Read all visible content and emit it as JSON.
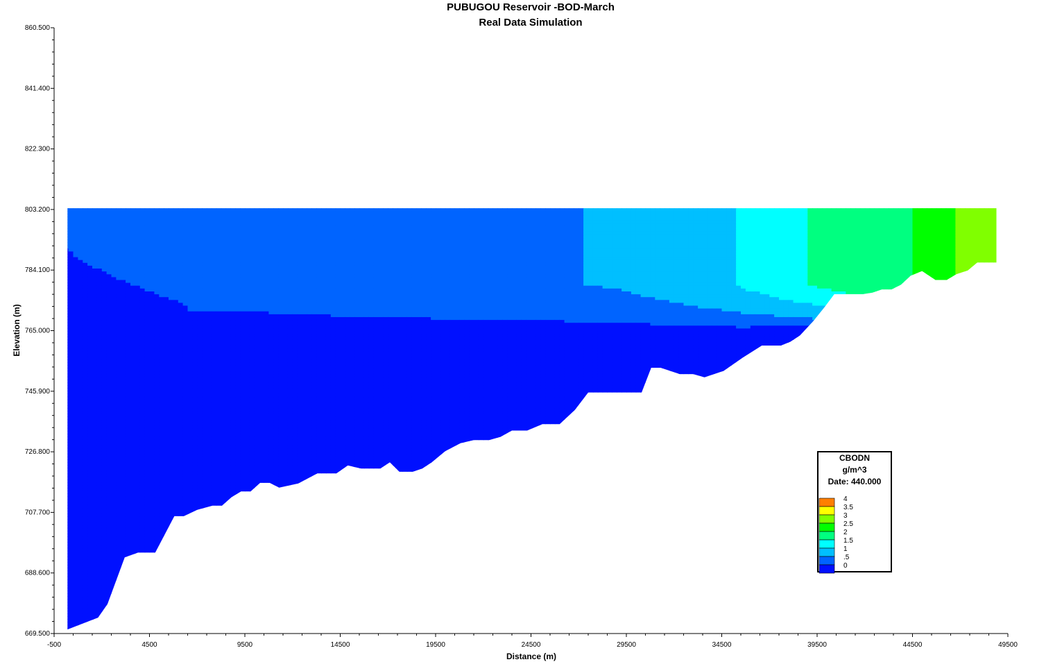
{
  "chart_data": {
    "type": "contour",
    "title": "PUBUGOU Reservoir -BOD-March",
    "subtitle": "Real Data Simulation",
    "xlabel": "Distance (m)",
    "ylabel": "Elevation (m)",
    "xlim": [
      -500,
      49500
    ],
    "ylim": [
      669.5,
      860.5
    ],
    "x_ticks": [
      "-500",
      "4500",
      "9500",
      "14500",
      "19500",
      "24500",
      "29500",
      "34500",
      "39500",
      "44500",
      "49500"
    ],
    "y_ticks": [
      "860.500",
      "841.400",
      "822.300",
      "803.200",
      "784.100",
      "765.000",
      "745.900",
      "726.800",
      "707.700",
      "688.600",
      "669.500"
    ],
    "water_surface_elevation": 803.6,
    "bottom_profile": [
      [
        200,
        670.8
      ],
      [
        1800,
        674.5
      ],
      [
        2300,
        678.8
      ],
      [
        3200,
        693.5
      ],
      [
        3900,
        695.0
      ],
      [
        4800,
        695.0
      ],
      [
        5800,
        706.5
      ],
      [
        6300,
        706.5
      ],
      [
        7000,
        708.5
      ],
      [
        7800,
        709.8
      ],
      [
        8300,
        709.8
      ],
      [
        8800,
        712.5
      ],
      [
        9300,
        714.3
      ],
      [
        9800,
        714.3
      ],
      [
        10300,
        717.0
      ],
      [
        10800,
        717.0
      ],
      [
        11300,
        715.5
      ],
      [
        12300,
        716.8
      ],
      [
        13300,
        720.0
      ],
      [
        14300,
        720.0
      ],
      [
        14900,
        722.5
      ],
      [
        15600,
        721.5
      ],
      [
        16600,
        721.5
      ],
      [
        17100,
        723.5
      ],
      [
        17600,
        720.5
      ],
      [
        18300,
        720.5
      ],
      [
        18800,
        721.5
      ],
      [
        19300,
        723.5
      ],
      [
        20000,
        727.0
      ],
      [
        20800,
        729.5
      ],
      [
        21500,
        730.5
      ],
      [
        22300,
        730.5
      ],
      [
        22900,
        731.5
      ],
      [
        23500,
        733.5
      ],
      [
        24300,
        733.5
      ],
      [
        25100,
        735.5
      ],
      [
        26000,
        735.5
      ],
      [
        26800,
        740.0
      ],
      [
        27500,
        745.5
      ],
      [
        30300,
        745.5
      ],
      [
        30800,
        753.3
      ],
      [
        31300,
        753.3
      ],
      [
        32300,
        751.3
      ],
      [
        33000,
        751.3
      ],
      [
        33600,
        750.3
      ],
      [
        34600,
        752.3
      ],
      [
        35600,
        756.5
      ],
      [
        36600,
        760.3
      ],
      [
        37600,
        760.3
      ],
      [
        38100,
        761.5
      ],
      [
        38600,
        763.5
      ],
      [
        39300,
        768.0
      ],
      [
        39900,
        772.5
      ],
      [
        40400,
        776.5
      ],
      [
        41900,
        776.5
      ],
      [
        42400,
        777.0
      ],
      [
        42900,
        778.0
      ],
      [
        43400,
        778.0
      ],
      [
        43900,
        779.5
      ],
      [
        44400,
        782.3
      ],
      [
        45000,
        783.8
      ],
      [
        45700,
        781.0
      ],
      [
        46300,
        781.0
      ],
      [
        46800,
        782.8
      ],
      [
        47400,
        784.0
      ],
      [
        47900,
        786.5
      ],
      [
        48900,
        786.5
      ],
      [
        48900,
        803.6
      ]
    ],
    "contour_levels": [
      "4",
      "3.5",
      "3",
      "2.5",
      "2",
      "1.5",
      "1",
      ".5",
      "0"
    ],
    "contour_colors": [
      "#ff7f00",
      "#ffff00",
      "#80ff00",
      "#00ff00",
      "#00ff80",
      "#00ffff",
      "#00bfff",
      "#0064ff",
      "#0010ff"
    ],
    "surface_profile_cbod": [
      [
        200,
        0.62
      ],
      [
        11300,
        0.72
      ],
      [
        15800,
        0.82
      ],
      [
        21200,
        0.9
      ],
      [
        24100,
        0.95
      ],
      [
        27300,
        1.0
      ],
      [
        29300,
        1.05
      ],
      [
        31300,
        1.2
      ],
      [
        33300,
        1.35
      ],
      [
        35300,
        1.5
      ],
      [
        36800,
        1.72
      ],
      [
        38300,
        1.9
      ],
      [
        39800,
        2.1
      ],
      [
        41500,
        2.3
      ],
      [
        42800,
        2.35
      ],
      [
        44300,
        2.45
      ],
      [
        45300,
        2.65
      ],
      [
        46300,
        2.9
      ],
      [
        47300,
        3.2
      ],
      [
        48300,
        3.35
      ],
      [
        48900,
        3.45
      ]
    ],
    "legend": {
      "title": "CBODN",
      "unit": "g/m^3",
      "date": "Date: 440.000",
      "placement": "bottom-right"
    }
  }
}
